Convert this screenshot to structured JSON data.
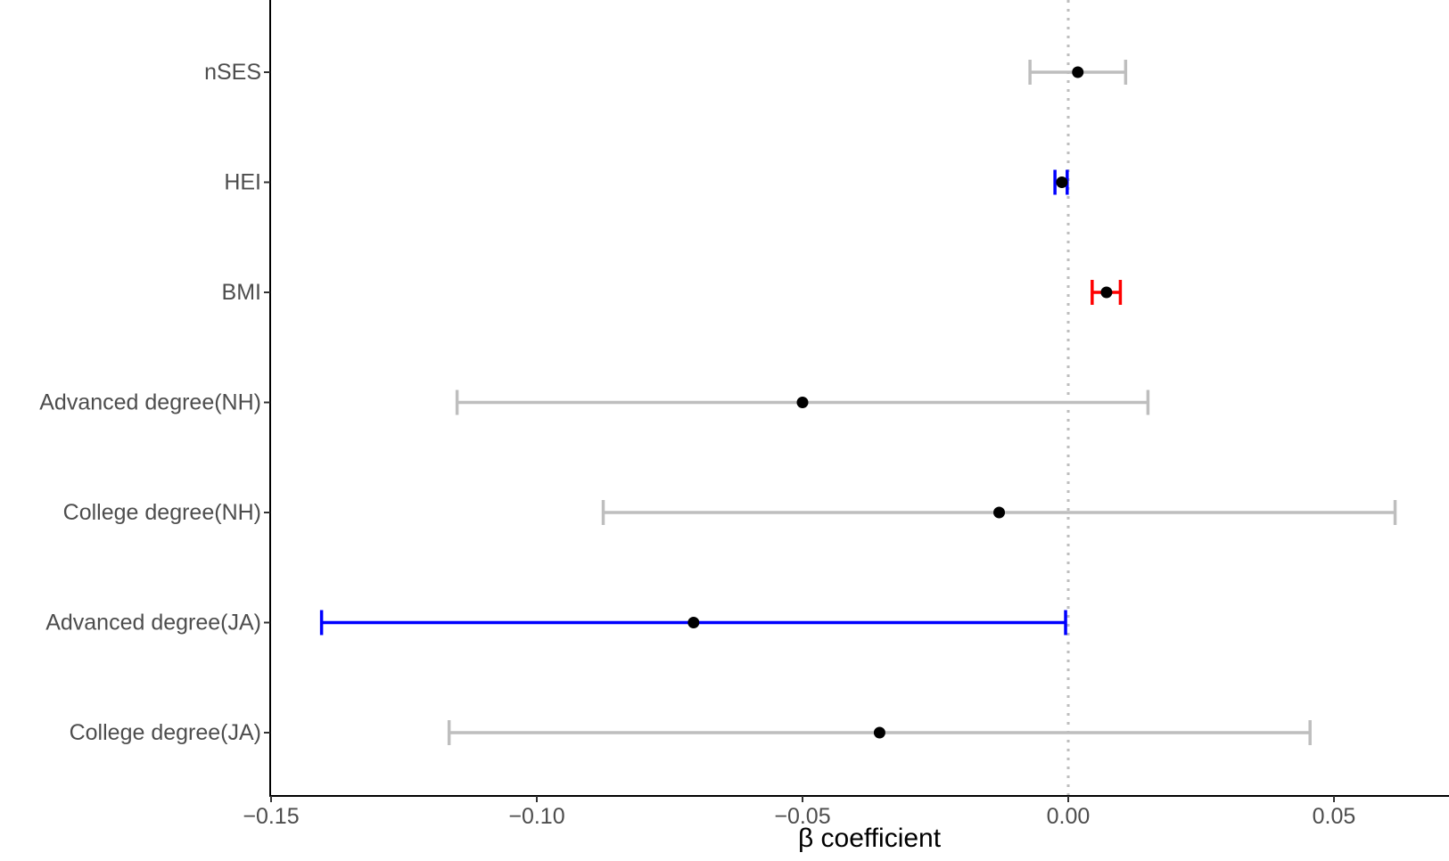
{
  "chart_data": {
    "type": "forest",
    "xlabel": "β coefficient",
    "ylabel": "",
    "xlim": [
      -0.152,
      0.072
    ],
    "x_ticks": [
      -0.15,
      -0.1,
      -0.05,
      0.0,
      0.05
    ],
    "x_tick_labels": [
      "−0.15",
      "−0.10",
      "−0.05",
      "0.00",
      "0.05"
    ],
    "reference_line": 0,
    "grid": false,
    "legend": "none",
    "colors": {
      "nonsignificant": "#bebebe",
      "negative_significant": "#0000ff",
      "positive_significant": "#ff0000",
      "point": "#000000",
      "reference_line": "#bebebe",
      "axis": "#000000",
      "tick_text": "#4d4d4d"
    },
    "rows": [
      {
        "label": "nSES",
        "estimate": 0.0018,
        "lower": -0.0072,
        "upper": 0.0108,
        "color": "#bebebe"
      },
      {
        "label": "HEI",
        "estimate": -0.0012,
        "lower": -0.0025,
        "upper": -0.0002,
        "color": "#0000ff"
      },
      {
        "label": "BMI",
        "estimate": 0.0072,
        "lower": 0.0045,
        "upper": 0.0098,
        "color": "#ff0000"
      },
      {
        "label": "Advanced degree(NH)",
        "estimate": -0.05,
        "lower": -0.115,
        "upper": 0.015,
        "color": "#bebebe"
      },
      {
        "label": "College degree(NH)",
        "estimate": -0.013,
        "lower": -0.0875,
        "upper": 0.0615,
        "color": "#bebebe"
      },
      {
        "label": "Advanced degree(JA)",
        "estimate": -0.0705,
        "lower": -0.1405,
        "upper": -0.0005,
        "color": "#0000ff"
      },
      {
        "label": "College degree(JA)",
        "estimate": -0.0355,
        "lower": -0.1165,
        "upper": 0.0455,
        "color": "#bebebe"
      }
    ]
  }
}
